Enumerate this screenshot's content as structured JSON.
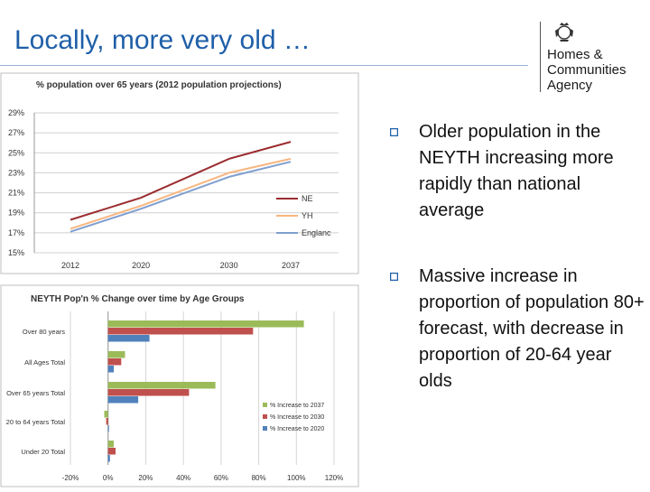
{
  "slide": {
    "title": "Locally, more very old …"
  },
  "logo": {
    "lines": [
      "Homes &",
      "Communities",
      "Agency"
    ]
  },
  "bullets": [
    "Older population in the NEYTH increasing more rapidly than national average",
    "Massive increase in proportion of population 80+ forecast, with decrease in proportion of 20-64 year olds"
  ],
  "chart_data": [
    {
      "type": "line",
      "title": "% population over 65 years (2012  population projections)",
      "x": [
        "2012",
        "2020",
        "2030",
        "2037"
      ],
      "y_ticks": [
        "15%",
        "17%",
        "19%",
        "21%",
        "23%",
        "25%",
        "27%",
        "29%"
      ],
      "ylim": [
        15,
        29
      ],
      "grid": true,
      "legend": "right",
      "series": [
        {
          "name": "NE",
          "color": "#9b2d30",
          "points": [
            [
              2012,
              18.3
            ],
            [
              2020,
              20.5
            ],
            [
              2030,
              24.4
            ],
            [
              2037,
              26.1
            ]
          ]
        },
        {
          "name": "YH",
          "color": "#f7b680",
          "points": [
            [
              2012,
              17.4
            ],
            [
              2020,
              19.7
            ],
            [
              2030,
              23.0
            ],
            [
              2037,
              24.4
            ]
          ]
        },
        {
          "name": "England",
          "color": "#7f9fcf",
          "points": [
            [
              2012,
              17.1
            ],
            [
              2020,
              19.4
            ],
            [
              2030,
              22.6
            ],
            [
              2037,
              24.1
            ]
          ]
        }
      ],
      "legend_labels": [
        "NE",
        "YH",
        "Englanc"
      ]
    },
    {
      "type": "bar",
      "orientation": "horizontal",
      "title": "NEYTH Pop'n % Change over time by Age Groups",
      "categories": [
        "Over 80 years",
        "All Ages Total",
        "Over 65 years Total",
        "20 to 64 years Total",
        "Under 20 Total"
      ],
      "x_ticks": [
        "-20%",
        "0%",
        "20%",
        "40%",
        "60%",
        "80%",
        "100%",
        "120%"
      ],
      "xlim": [
        -20,
        120
      ],
      "grid": true,
      "legend": "right",
      "series": [
        {
          "name": "% Increase to 2037",
          "color": "#9bbb59",
          "values": [
            104,
            9,
            57,
            -2,
            3
          ]
        },
        {
          "name": "% Increase to 2030",
          "color": "#c0504d",
          "values": [
            77,
            7,
            43,
            -1,
            4
          ]
        },
        {
          "name": "% Increase to 2020",
          "color": "#4f81bd",
          "values": [
            22,
            3,
            16,
            0,
            1
          ]
        }
      ]
    }
  ]
}
